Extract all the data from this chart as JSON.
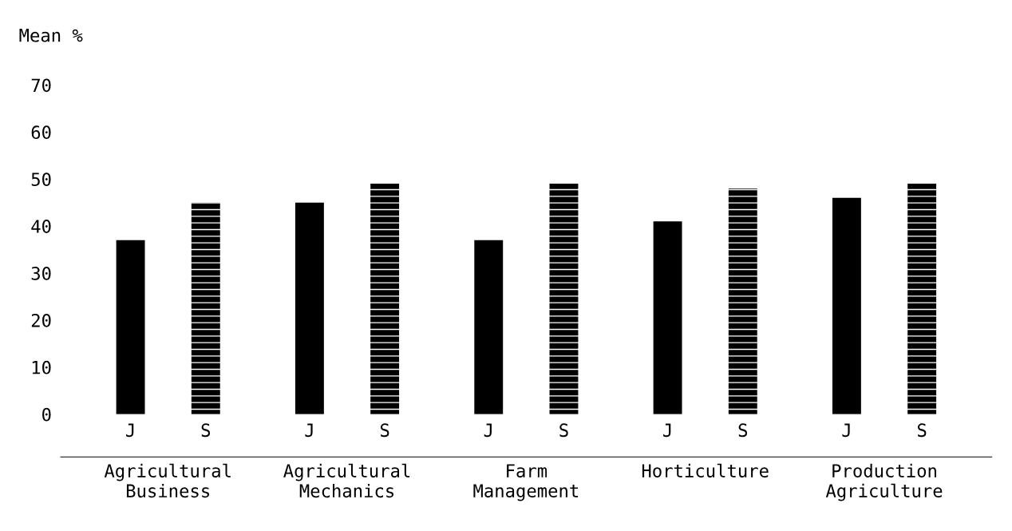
{
  "chart_data": {
    "type": "bar",
    "ylabel": "Mean %",
    "categories": [
      "Agricultural\nBusiness",
      "Agricultural\nMechanics",
      "Farm\nManagement",
      "Horticulture",
      "Production\nAgriculture"
    ],
    "series": [
      {
        "name": "J",
        "color": "#000000",
        "values": [
          37,
          45,
          37,
          41,
          46
        ]
      },
      {
        "name": "S",
        "color": "#000000",
        "line_style": "dashed",
        "values": [
          45,
          49,
          49,
          48,
          49
        ]
      }
    ],
    "ylim": [
      0,
      70
    ],
    "yticks": [
      0,
      10,
      20,
      30,
      40,
      50,
      60,
      70
    ],
    "grid": false,
    "legend": false
  }
}
